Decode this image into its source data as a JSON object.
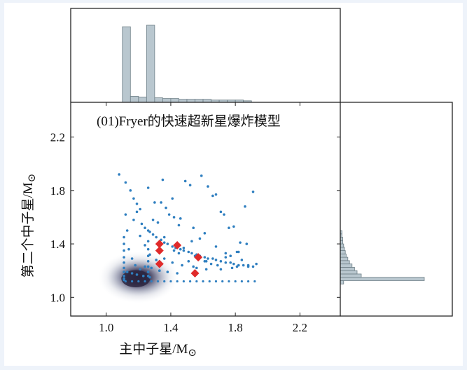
{
  "chart_data": {
    "type": "scatter",
    "title": "(01)Fryer的快速超新星爆炸模型",
    "xlabel": "主中子星/M",
    "ylabel": "第二个中子星/M",
    "unit_symbol": "⊙",
    "xlim": [
      0.78,
      2.45
    ],
    "ylim": [
      0.86,
      2.46
    ],
    "xticks": [
      1.0,
      1.4,
      1.8,
      2.2
    ],
    "yticks": [
      1.0,
      1.4,
      1.8,
      2.2
    ],
    "colors": {
      "points": "#2f7fc0",
      "observed": "#e02a2a",
      "density": "#2b2640",
      "histogram_fill": "#b9c7cf",
      "histogram_edge": "#6f8088"
    },
    "top_histogram": {
      "bins": [
        1.1,
        1.15,
        1.2,
        1.25,
        1.3,
        1.35,
        1.4,
        1.45,
        1.5,
        1.55,
        1.6,
        1.65,
        1.7,
        1.75,
        1.8,
        1.85,
        1.9
      ],
      "counts": [
        1.0,
        0.08,
        0.07,
        1.02,
        0.06,
        0.05,
        0.05,
        0.04,
        0.04,
        0.04,
        0.04,
        0.03,
        0.03,
        0.03,
        0.03,
        0.02
      ]
    },
    "right_histogram": {
      "bins": [
        1.1,
        1.125,
        1.15,
        1.175,
        1.2,
        1.225,
        1.25,
        1.275,
        1.3,
        1.325,
        1.35,
        1.375,
        1.4,
        1.425,
        1.45,
        1.475,
        1.5
      ],
      "counts": [
        0.04,
        1.0,
        0.25,
        0.2,
        0.17,
        0.14,
        0.11,
        0.09,
        0.07,
        0.06,
        0.05,
        0.04,
        0.03,
        0.03,
        0.02,
        0.02
      ]
    },
    "observed_points": {
      "x": [
        1.33,
        1.33,
        1.33,
        1.44,
        1.57,
        1.55
      ],
      "y": [
        1.4,
        1.35,
        1.25,
        1.39,
        1.3,
        1.18
      ]
    },
    "simulated_points": {
      "x": [
        1.08,
        1.12,
        1.15,
        1.17,
        1.19,
        1.21,
        1.12,
        1.17,
        1.22,
        1.24,
        1.27,
        1.29,
        1.31,
        1.34,
        1.36,
        1.38,
        1.41,
        1.43,
        1.46,
        1.48,
        1.51,
        1.53,
        1.56,
        1.58,
        1.61,
        1.63,
        1.66,
        1.68,
        1.71,
        1.74,
        1.77,
        1.79,
        1.82,
        1.85,
        1.88,
        1.91,
        1.13,
        1.19,
        1.26,
        1.34,
        1.42,
        1.49,
        1.58,
        1.66,
        1.76,
        1.86,
        1.14,
        1.21,
        1.29,
        1.37,
        1.45,
        1.54,
        1.63,
        1.73,
        1.83,
        1.16,
        1.24,
        1.32,
        1.41,
        1.51,
        1.61,
        1.71,
        1.81,
        1.18,
        1.27,
        1.36,
        1.46,
        1.56,
        1.68,
        1.79,
        1.91,
        1.21,
        1.31,
        1.42,
        1.53,
        1.65,
        1.77,
        1.13,
        1.24,
        1.36,
        1.48,
        1.61,
        1.74,
        1.87,
        1.16,
        1.28,
        1.41,
        1.55,
        1.69,
        1.84,
        1.19,
        1.33,
        1.47,
        1.62,
        1.78,
        1.93,
        1.23,
        1.38,
        1.54,
        1.71,
        1.88,
        1.27,
        1.44,
        1.62,
        1.81,
        1.11,
        1.11,
        1.11,
        1.11,
        1.11,
        1.11,
        1.11,
        1.11,
        1.11,
        1.11,
        1.26,
        1.26,
        1.26,
        1.26,
        1.26,
        1.26,
        1.26,
        1.26,
        1.33,
        1.39,
        1.52,
        1.68,
        1.74,
        1.45,
        1.59,
        1.82,
        1.3,
        1.35
      ],
      "y": [
        1.92,
        1.86,
        1.8,
        1.74,
        1.7,
        1.66,
        1.62,
        1.58,
        1.55,
        1.52,
        1.49,
        1.47,
        1.45,
        1.43,
        1.41,
        1.4,
        1.38,
        1.37,
        1.36,
        1.35,
        1.34,
        1.33,
        1.32,
        1.31,
        1.3,
        1.29,
        1.29,
        1.28,
        1.27,
        1.26,
        1.26,
        1.25,
        1.24,
        1.24,
        1.23,
        1.23,
        1.5,
        1.64,
        1.82,
        1.71,
        1.6,
        1.87,
        1.44,
        1.76,
        1.52,
        1.68,
        1.36,
        1.46,
        1.58,
        1.67,
        1.33,
        1.52,
        1.83,
        1.62,
        1.41,
        1.29,
        1.39,
        1.56,
        1.74,
        1.27,
        1.48,
        1.64,
        1.34,
        1.24,
        1.32,
        1.45,
        1.59,
        1.22,
        1.38,
        1.53,
        1.79,
        1.21,
        1.28,
        1.35,
        1.42,
        1.25,
        1.31,
        1.19,
        1.23,
        1.29,
        1.37,
        1.27,
        1.33,
        1.4,
        1.18,
        1.22,
        1.26,
        1.31,
        1.24,
        1.28,
        1.17,
        1.2,
        1.24,
        1.27,
        1.22,
        1.25,
        1.16,
        1.19,
        1.23,
        1.21,
        1.24,
        1.15,
        1.18,
        1.21,
        1.23,
        1.45,
        1.4,
        1.35,
        1.3,
        1.26,
        1.22,
        1.19,
        1.16,
        1.14,
        1.13,
        1.5,
        1.42,
        1.36,
        1.31,
        1.27,
        1.23,
        1.19,
        1.16,
        1.2,
        1.62,
        1.84,
        1.77,
        1.3,
        1.54,
        1.91,
        1.34,
        1.71,
        1.88
      ]
    },
    "baseline_points": {
      "x": [
        1.12,
        1.16,
        1.2,
        1.24,
        1.28,
        1.32,
        1.36,
        1.4,
        1.44,
        1.48,
        1.52,
        1.56,
        1.6,
        1.64,
        1.68,
        1.72,
        1.76,
        1.8,
        1.84,
        1.88,
        1.92
      ],
      "y": [
        1.12,
        1.12,
        1.12,
        1.12,
        1.12,
        1.12,
        1.12,
        1.12,
        1.12,
        1.12,
        1.12,
        1.12,
        1.12,
        1.12,
        1.12,
        1.12,
        1.12,
        1.12,
        1.12,
        1.12,
        1.12
      ]
    },
    "density": {
      "center": [
        1.2,
        1.15
      ],
      "spread": [
        0.09,
        0.065
      ]
    }
  }
}
